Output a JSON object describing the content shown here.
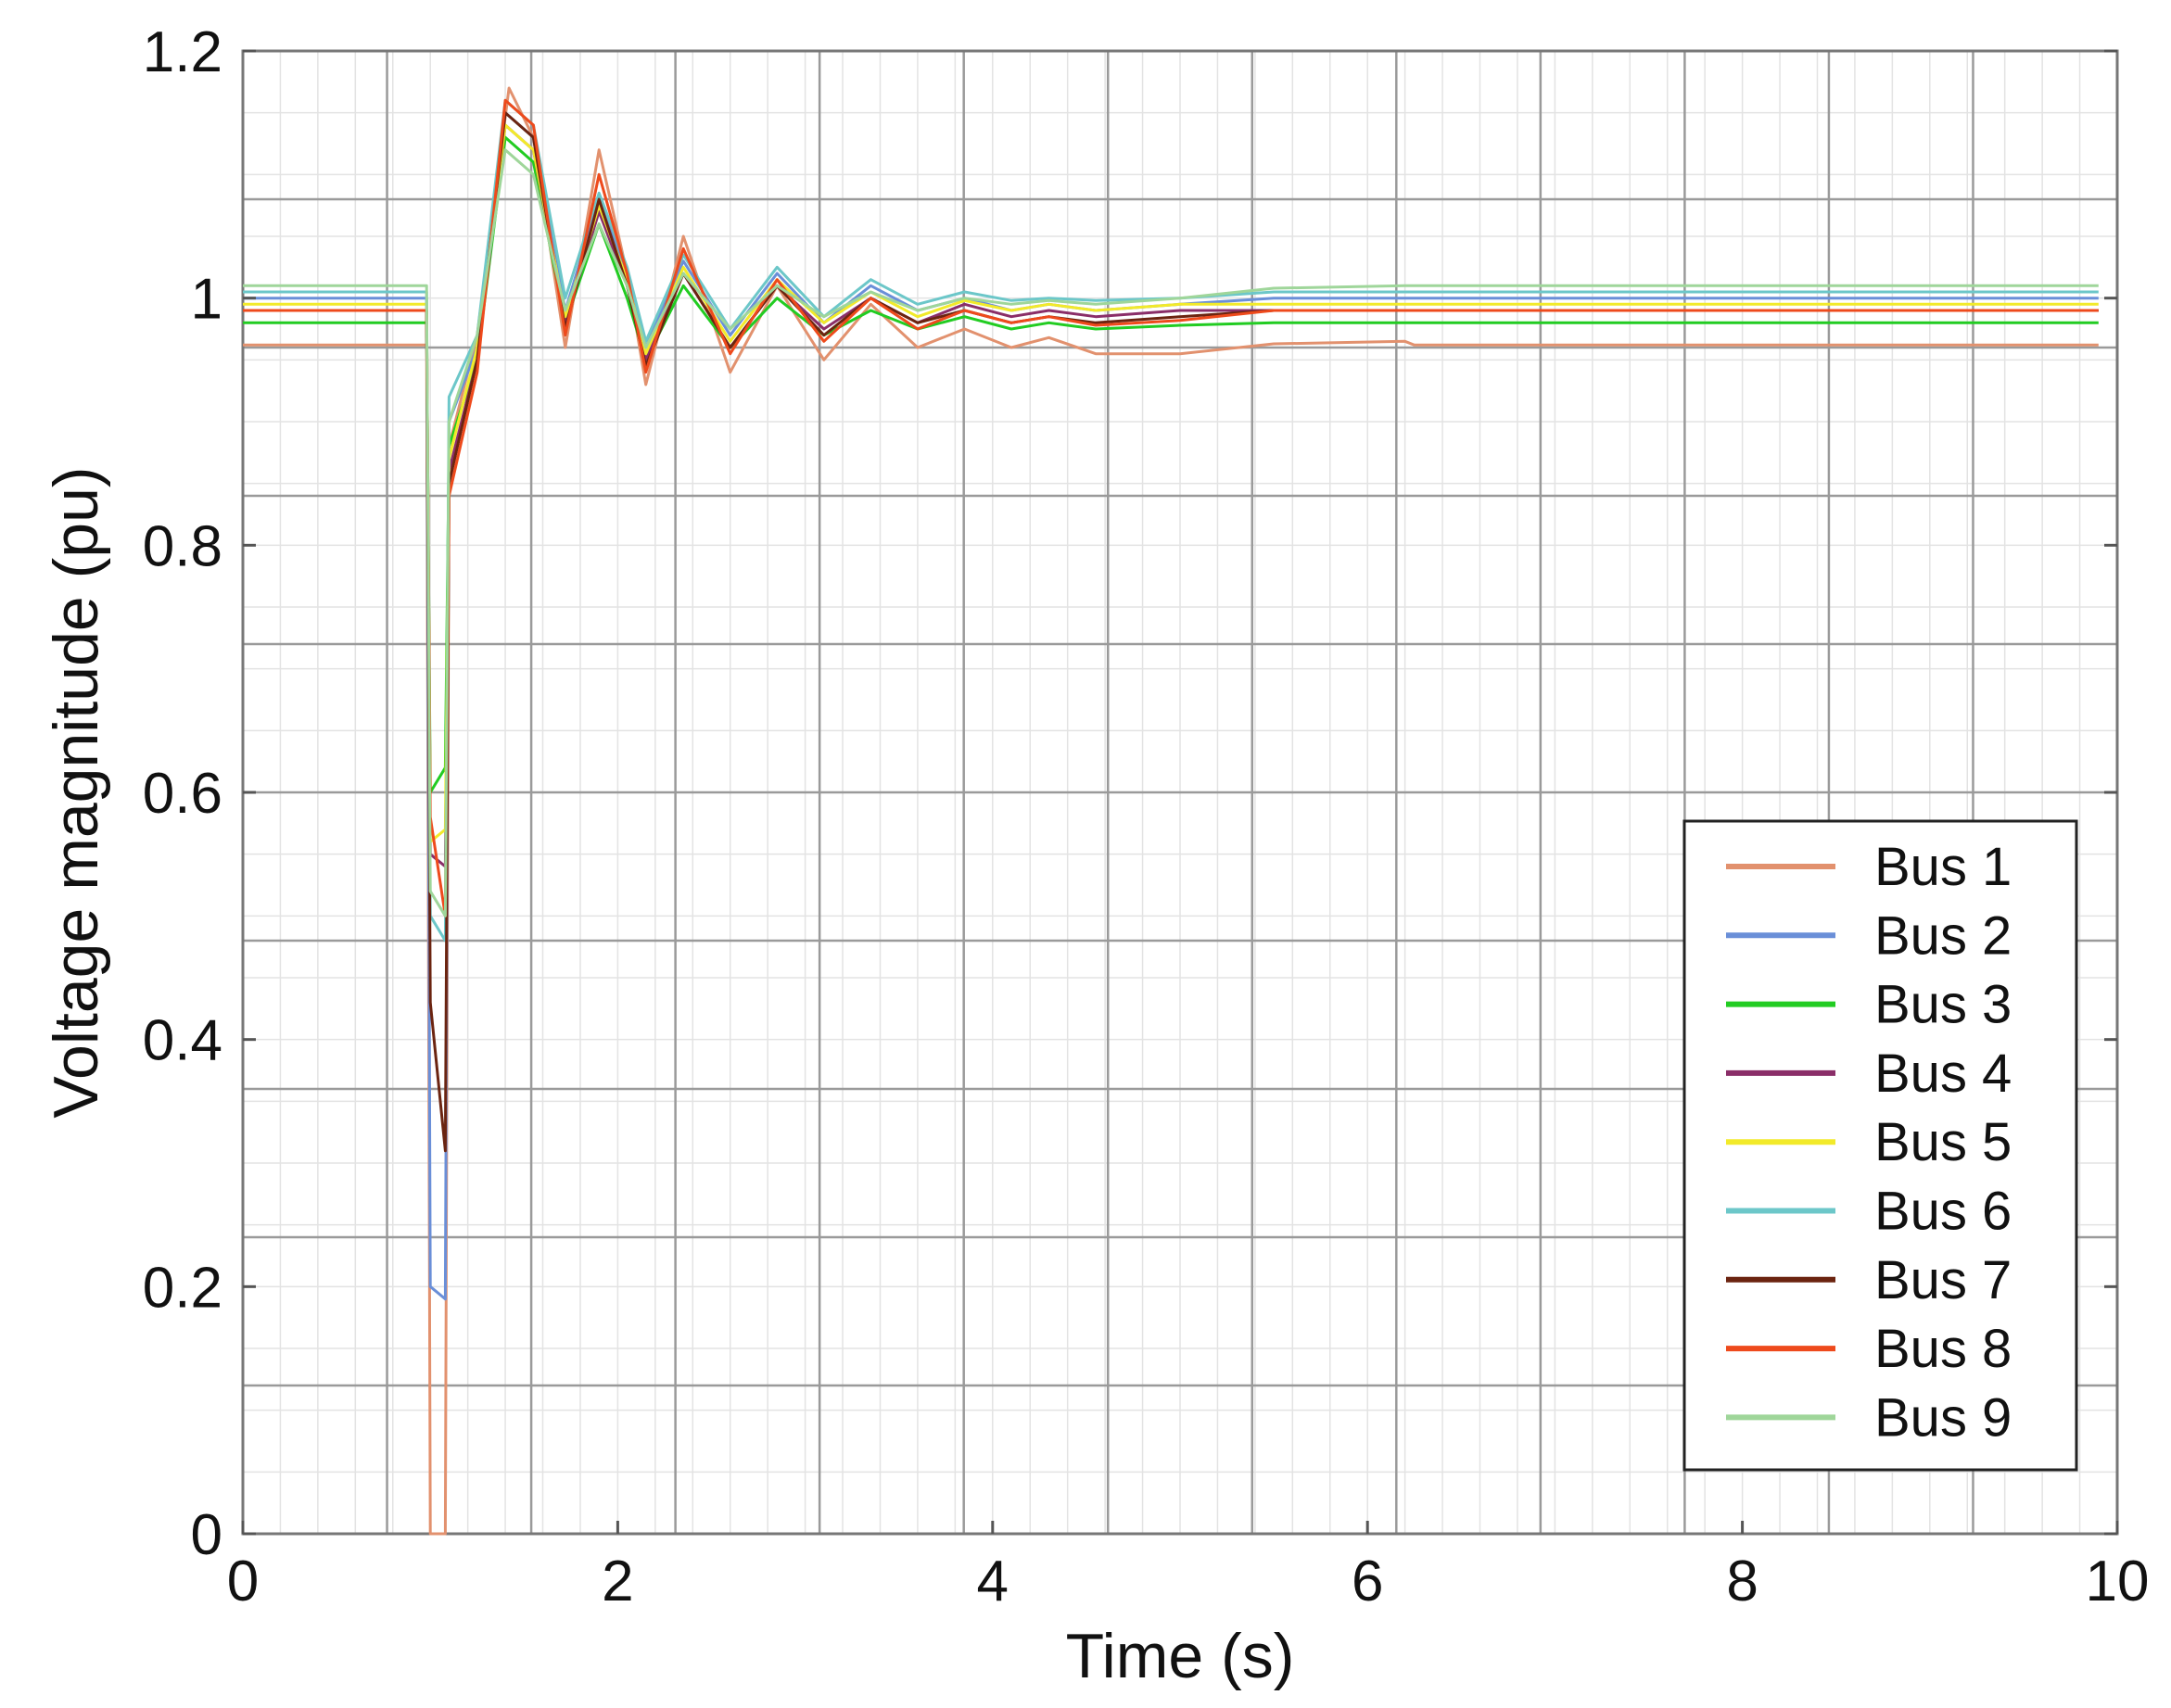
{
  "chart_data": {
    "type": "line",
    "title": "",
    "xlabel": "Time (s)",
    "ylabel": "Voltage magnitude (pu)",
    "xlim": [
      0,
      10
    ],
    "ylim": [
      0,
      1.2
    ],
    "x_ticks": [
      "0",
      "2",
      "4",
      "6",
      "8",
      "10"
    ],
    "y_ticks": [
      "0",
      "0.2",
      "0.4",
      "0.6",
      "0.8",
      "1",
      "1.2"
    ],
    "grid": true,
    "legend_position": "lower-right",
    "series": [
      {
        "name": "Bus 1",
        "color": "#e2916e",
        "points": [
          [
            0,
            0.962
          ],
          [
            0.98,
            0.962
          ],
          [
            1.0,
            0.0
          ],
          [
            1.08,
            0.0
          ],
          [
            1.1,
            0.88
          ],
          [
            1.25,
            0.97
          ],
          [
            1.42,
            1.17
          ],
          [
            1.55,
            1.13
          ],
          [
            1.72,
            0.96
          ],
          [
            1.9,
            1.12
          ],
          [
            2.05,
            1.02
          ],
          [
            2.15,
            0.93
          ],
          [
            2.35,
            1.05
          ],
          [
            2.6,
            0.94
          ],
          [
            2.85,
            1.01
          ],
          [
            3.1,
            0.95
          ],
          [
            3.35,
            0.995
          ],
          [
            3.6,
            0.96
          ],
          [
            3.85,
            0.975
          ],
          [
            4.1,
            0.96
          ],
          [
            4.3,
            0.968
          ],
          [
            4.55,
            0.955
          ],
          [
            5.0,
            0.955
          ],
          [
            5.5,
            0.963
          ],
          [
            6.2,
            0.965
          ],
          [
            6.25,
            0.962
          ],
          [
            9.9,
            0.962
          ]
        ]
      },
      {
        "name": "Bus 2",
        "color": "#6a8fd8",
        "points": [
          [
            0,
            1.0
          ],
          [
            0.98,
            1.0
          ],
          [
            1.0,
            0.2
          ],
          [
            1.08,
            0.19
          ],
          [
            1.1,
            0.9
          ],
          [
            1.25,
            0.96
          ],
          [
            1.4,
            1.15
          ],
          [
            1.55,
            1.13
          ],
          [
            1.72,
            0.99
          ],
          [
            1.9,
            1.08
          ],
          [
            2.05,
            1.02
          ],
          [
            2.15,
            0.96
          ],
          [
            2.35,
            1.03
          ],
          [
            2.6,
            0.97
          ],
          [
            2.85,
            1.02
          ],
          [
            3.1,
            0.98
          ],
          [
            3.35,
            1.01
          ],
          [
            3.6,
            0.99
          ],
          [
            3.85,
            1.0
          ],
          [
            4.1,
            0.99
          ],
          [
            4.3,
            0.995
          ],
          [
            4.55,
            0.99
          ],
          [
            5.0,
            0.995
          ],
          [
            5.5,
            1.0
          ],
          [
            9.9,
            1.0
          ]
        ]
      },
      {
        "name": "Bus 3",
        "color": "#22cc22",
        "points": [
          [
            0,
            0.98
          ],
          [
            0.98,
            0.98
          ],
          [
            1.0,
            0.6
          ],
          [
            1.08,
            0.62
          ],
          [
            1.1,
            0.88
          ],
          [
            1.25,
            0.95
          ],
          [
            1.4,
            1.13
          ],
          [
            1.55,
            1.11
          ],
          [
            1.72,
            0.98
          ],
          [
            1.9,
            1.06
          ],
          [
            2.05,
            1.0
          ],
          [
            2.15,
            0.95
          ],
          [
            2.35,
            1.01
          ],
          [
            2.6,
            0.96
          ],
          [
            2.85,
            1.0
          ],
          [
            3.1,
            0.97
          ],
          [
            3.35,
            0.99
          ],
          [
            3.6,
            0.975
          ],
          [
            3.85,
            0.985
          ],
          [
            4.1,
            0.975
          ],
          [
            4.3,
            0.98
          ],
          [
            4.55,
            0.975
          ],
          [
            5.0,
            0.978
          ],
          [
            5.5,
            0.98
          ],
          [
            9.9,
            0.98
          ]
        ]
      },
      {
        "name": "Bus 4",
        "color": "#8a2e68",
        "points": [
          [
            0,
            0.99
          ],
          [
            0.98,
            0.99
          ],
          [
            1.0,
            0.55
          ],
          [
            1.08,
            0.54
          ],
          [
            1.1,
            0.86
          ],
          [
            1.25,
            0.95
          ],
          [
            1.4,
            1.14
          ],
          [
            1.55,
            1.12
          ],
          [
            1.72,
            0.98
          ],
          [
            1.9,
            1.07
          ],
          [
            2.05,
            1.01
          ],
          [
            2.15,
            0.95
          ],
          [
            2.35,
            1.02
          ],
          [
            2.6,
            0.96
          ],
          [
            2.85,
            1.01
          ],
          [
            3.1,
            0.975
          ],
          [
            3.35,
            1.0
          ],
          [
            3.6,
            0.98
          ],
          [
            3.85,
            0.995
          ],
          [
            4.1,
            0.985
          ],
          [
            4.3,
            0.99
          ],
          [
            4.55,
            0.985
          ],
          [
            5.0,
            0.99
          ],
          [
            5.5,
            0.99
          ],
          [
            9.9,
            0.99
          ]
        ]
      },
      {
        "name": "Bus 5",
        "color": "#f2ea2a",
        "points": [
          [
            0,
            0.995
          ],
          [
            0.98,
            0.995
          ],
          [
            1.0,
            0.56
          ],
          [
            1.08,
            0.57
          ],
          [
            1.1,
            0.87
          ],
          [
            1.25,
            0.96
          ],
          [
            1.4,
            1.14
          ],
          [
            1.55,
            1.12
          ],
          [
            1.72,
            0.985
          ],
          [
            1.9,
            1.075
          ],
          [
            2.05,
            1.015
          ],
          [
            2.15,
            0.955
          ],
          [
            2.35,
            1.025
          ],
          [
            2.6,
            0.965
          ],
          [
            2.85,
            1.015
          ],
          [
            3.1,
            0.98
          ],
          [
            3.35,
            1.005
          ],
          [
            3.6,
            0.985
          ],
          [
            3.85,
            0.998
          ],
          [
            4.1,
            0.99
          ],
          [
            4.3,
            0.995
          ],
          [
            4.55,
            0.99
          ],
          [
            5.0,
            0.995
          ],
          [
            5.5,
            0.995
          ],
          [
            9.9,
            0.995
          ]
        ]
      },
      {
        "name": "Bus 6",
        "color": "#6cc7c9",
        "points": [
          [
            0,
            1.005
          ],
          [
            0.98,
            1.005
          ],
          [
            1.0,
            0.5
          ],
          [
            1.08,
            0.48
          ],
          [
            1.1,
            0.92
          ],
          [
            1.25,
            0.97
          ],
          [
            1.4,
            1.16
          ],
          [
            1.55,
            1.14
          ],
          [
            1.72,
            1.0
          ],
          [
            1.9,
            1.085
          ],
          [
            2.05,
            1.025
          ],
          [
            2.15,
            0.965
          ],
          [
            2.35,
            1.035
          ],
          [
            2.6,
            0.975
          ],
          [
            2.85,
            1.025
          ],
          [
            3.1,
            0.985
          ],
          [
            3.35,
            1.015
          ],
          [
            3.6,
            0.995
          ],
          [
            3.85,
            1.005
          ],
          [
            4.1,
            0.998
          ],
          [
            4.3,
            1.0
          ],
          [
            4.55,
            0.998
          ],
          [
            5.0,
            1.0
          ],
          [
            5.5,
            1.005
          ],
          [
            9.9,
            1.005
          ]
        ]
      },
      {
        "name": "Bus 7",
        "color": "#6b2410",
        "points": [
          [
            0,
            0.99
          ],
          [
            0.98,
            0.99
          ],
          [
            1.0,
            0.43
          ],
          [
            1.08,
            0.31
          ],
          [
            1.1,
            0.85
          ],
          [
            1.25,
            0.95
          ],
          [
            1.4,
            1.15
          ],
          [
            1.55,
            1.13
          ],
          [
            1.72,
            0.975
          ],
          [
            1.9,
            1.08
          ],
          [
            2.05,
            1.01
          ],
          [
            2.15,
            0.945
          ],
          [
            2.35,
            1.02
          ],
          [
            2.6,
            0.96
          ],
          [
            2.85,
            1.01
          ],
          [
            3.1,
            0.97
          ],
          [
            3.35,
            1.0
          ],
          [
            3.6,
            0.98
          ],
          [
            3.85,
            0.99
          ],
          [
            4.1,
            0.98
          ],
          [
            4.3,
            0.985
          ],
          [
            4.55,
            0.98
          ],
          [
            5.0,
            0.985
          ],
          [
            5.5,
            0.99
          ],
          [
            9.9,
            0.99
          ]
        ]
      },
      {
        "name": "Bus 8",
        "color": "#ee4a1c",
        "points": [
          [
            0,
            0.99
          ],
          [
            0.98,
            0.99
          ],
          [
            1.0,
            0.58
          ],
          [
            1.08,
            0.5
          ],
          [
            1.1,
            0.84
          ],
          [
            1.25,
            0.94
          ],
          [
            1.4,
            1.16
          ],
          [
            1.55,
            1.14
          ],
          [
            1.72,
            0.97
          ],
          [
            1.9,
            1.1
          ],
          [
            2.05,
            1.02
          ],
          [
            2.15,
            0.94
          ],
          [
            2.35,
            1.04
          ],
          [
            2.6,
            0.955
          ],
          [
            2.85,
            1.015
          ],
          [
            3.1,
            0.965
          ],
          [
            3.35,
            1.0
          ],
          [
            3.6,
            0.975
          ],
          [
            3.85,
            0.99
          ],
          [
            4.1,
            0.98
          ],
          [
            4.3,
            0.985
          ],
          [
            4.55,
            0.978
          ],
          [
            5.0,
            0.982
          ],
          [
            5.5,
            0.99
          ],
          [
            9.9,
            0.99
          ]
        ]
      },
      {
        "name": "Bus 9",
        "color": "#9fd69a",
        "points": [
          [
            0,
            1.01
          ],
          [
            0.98,
            1.01
          ],
          [
            1.0,
            0.52
          ],
          [
            1.08,
            0.5
          ],
          [
            1.1,
            0.9
          ],
          [
            1.25,
            0.97
          ],
          [
            1.4,
            1.12
          ],
          [
            1.55,
            1.1
          ],
          [
            1.72,
            0.99
          ],
          [
            1.9,
            1.06
          ],
          [
            2.05,
            1.01
          ],
          [
            2.15,
            0.96
          ],
          [
            2.35,
            1.02
          ],
          [
            2.6,
            0.975
          ],
          [
            2.85,
            1.01
          ],
          [
            3.1,
            0.985
          ],
          [
            3.35,
            1.005
          ],
          [
            3.6,
            0.99
          ],
          [
            3.85,
            1.0
          ],
          [
            4.1,
            0.995
          ],
          [
            4.3,
            0.998
          ],
          [
            4.55,
            0.995
          ],
          [
            5.0,
            1.0
          ],
          [
            5.5,
            1.008
          ],
          [
            6.2,
            1.01
          ],
          [
            9.9,
            1.01
          ]
        ]
      }
    ]
  }
}
